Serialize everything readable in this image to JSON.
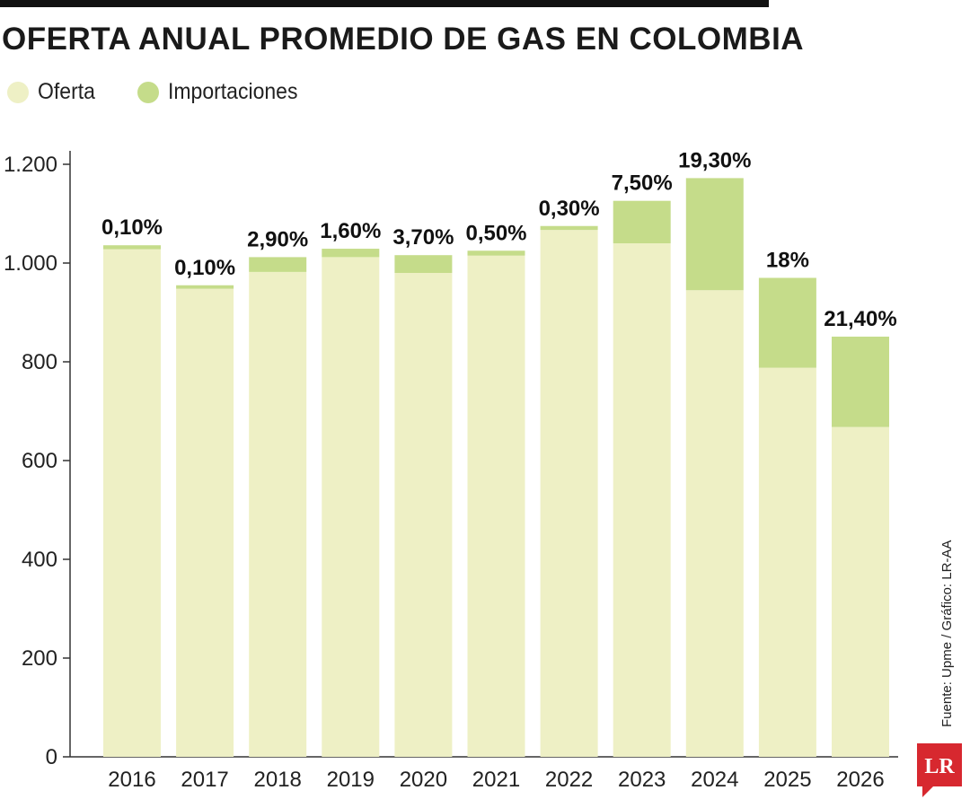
{
  "title": "OFERTA ANUAL PROMEDIO DE GAS EN COLOMBIA",
  "colors": {
    "oferta": "#eef0c5",
    "importaciones": "#c5dc8a",
    "axis": "#333333",
    "rule": "#111111",
    "logo": "#d7282f"
  },
  "legend": [
    {
      "label": "Oferta",
      "color": "#eef0c5"
    },
    {
      "label": "Importaciones",
      "color": "#c5dc8a"
    }
  ],
  "source": "Fuente: Upme / Gráfico: LR-AA",
  "logo_text": "LR",
  "chart_data": {
    "type": "bar",
    "stacked": true,
    "title": "OFERTA ANUAL PROMEDIO DE GAS EN COLOMBIA",
    "xlabel": "",
    "ylabel": "",
    "ylim": [
      0,
      1200
    ],
    "yticks": [
      0,
      200,
      400,
      600,
      800,
      1000,
      1200
    ],
    "ytick_labels": [
      "0",
      "200",
      "400",
      "600",
      "800",
      "1.000",
      "1.200"
    ],
    "categories": [
      "2016",
      "2017",
      "2018",
      "2019",
      "2020",
      "2021",
      "2022",
      "2023",
      "2024",
      "2025",
      "2026"
    ],
    "series": [
      {
        "name": "Oferta",
        "values": [
          1028,
          948,
          982,
          1012,
          980,
          1015,
          1067,
          1040,
          945,
          788,
          668
        ]
      },
      {
        "name": "Importaciones",
        "values": [
          8,
          7,
          30,
          17,
          36,
          10,
          8,
          86,
          227,
          182,
          183
        ]
      }
    ],
    "labels": [
      "0,10%",
      "0,10%",
      "2,90%",
      "1,60%",
      "3,70%",
      "0,50%",
      "0,30%",
      "7,50%",
      "19,30%",
      "18%",
      "21,40%"
    ]
  }
}
